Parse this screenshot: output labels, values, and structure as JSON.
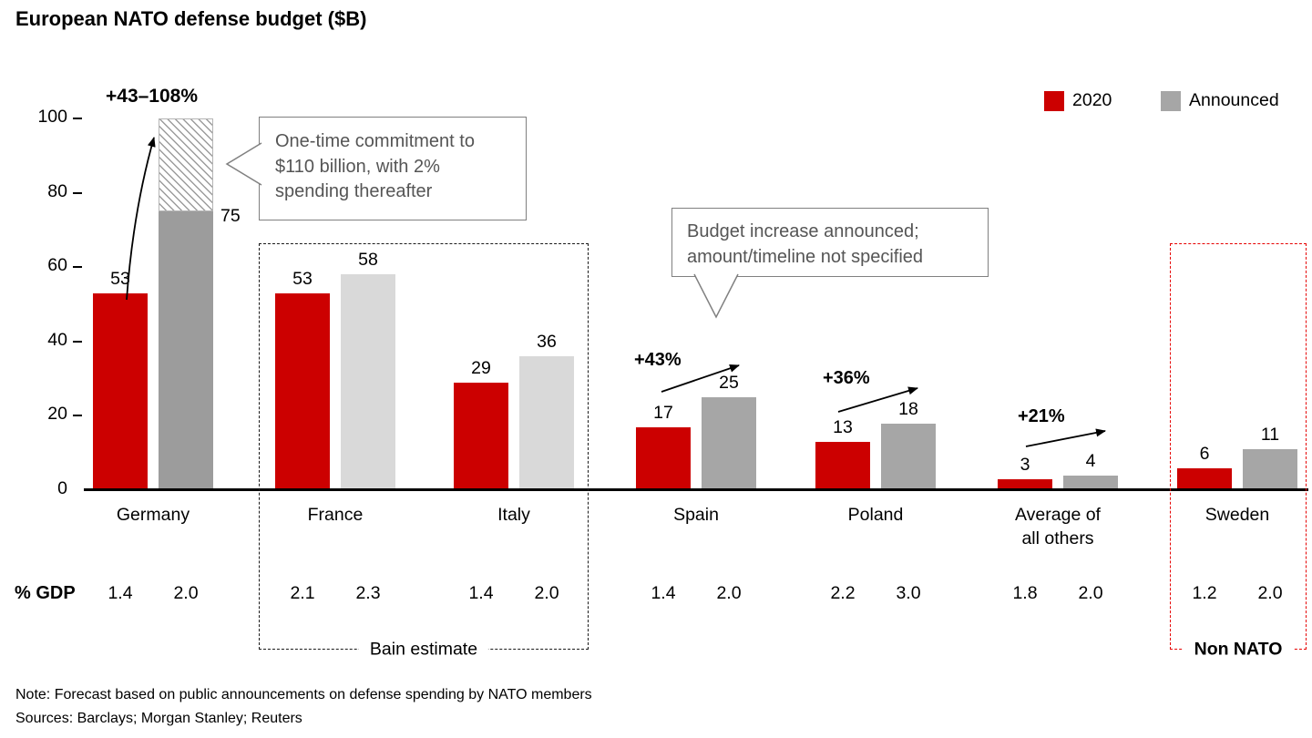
{
  "chart_data": {
    "type": "bar",
    "title": "European NATO defense budget ($B)",
    "xlabel": "",
    "ylabel": "",
    "ylim": [
      0,
      100
    ],
    "yticks": [
      0,
      20,
      40,
      60,
      80,
      100
    ],
    "grid": false,
    "legend_position": "top-right",
    "categories": [
      "Germany",
      "France",
      "Italy",
      "Spain",
      "Poland",
      "Average of all others",
      "Sweden"
    ],
    "category_lines": [
      [
        "Germany"
      ],
      [
        "France"
      ],
      [
        "Italy"
      ],
      [
        "Spain"
      ],
      [
        "Poland"
      ],
      [
        "Average of",
        "all others"
      ],
      [
        "Sweden"
      ]
    ],
    "series": [
      {
        "name": "2020",
        "color": "#cc0000",
        "values": [
          53,
          53,
          29,
          17,
          13,
          3,
          6
        ]
      },
      {
        "name": "Announced",
        "color": "#a6a6a6",
        "values": [
          75,
          58,
          36,
          25,
          18,
          4,
          11
        ],
        "bar_colors": [
          "#9c9c9c",
          "#d9d9d9",
          "#d9d9d9",
          "#a6a6a6",
          "#a6a6a6",
          "#a6a6a6",
          "#a6a6a6"
        ],
        "label_positions": [
          "right",
          "above",
          "above",
          "above",
          "above",
          "above",
          "above"
        ]
      }
    ],
    "germany_hatch_range": {
      "from": 75,
      "to": 100
    },
    "gdp_row": {
      "label": "% GDP",
      "values": [
        [
          "1.4",
          "2.0"
        ],
        [
          "2.1",
          "2.3"
        ],
        [
          "1.4",
          "2.0"
        ],
        [
          "1.4",
          "2.0"
        ],
        [
          "2.2",
          "3.0"
        ],
        [
          "1.8",
          "2.0"
        ],
        [
          "1.2",
          "2.0"
        ]
      ]
    },
    "annotations": {
      "growth": [
        {
          "text": "+43–108%",
          "country": "Germany"
        },
        {
          "text": "+43%",
          "country": "Spain"
        },
        {
          "text": "+36%",
          "country": "Poland"
        },
        {
          "text": "+21%",
          "country": "Average of all others"
        }
      ],
      "callouts": [
        {
          "text": "One-time commitment to $110 billion, with 2% spending thereafter"
        },
        {
          "text": "Budget increase announced; amount/timeline not specified"
        }
      ],
      "group_boxes": [
        {
          "label": "Bain estimate",
          "countries": [
            "France",
            "Italy"
          ],
          "border_color": "#1a1a1a"
        },
        {
          "label": "Non NATO",
          "countries": [
            "Sweden"
          ],
          "border_color": "#e60000"
        }
      ]
    }
  },
  "footer": {
    "note": "Note: Forecast based on public announcements on defense spending by NATO members",
    "sources": "Sources: Barclays; Morgan Stanley; Reuters"
  }
}
